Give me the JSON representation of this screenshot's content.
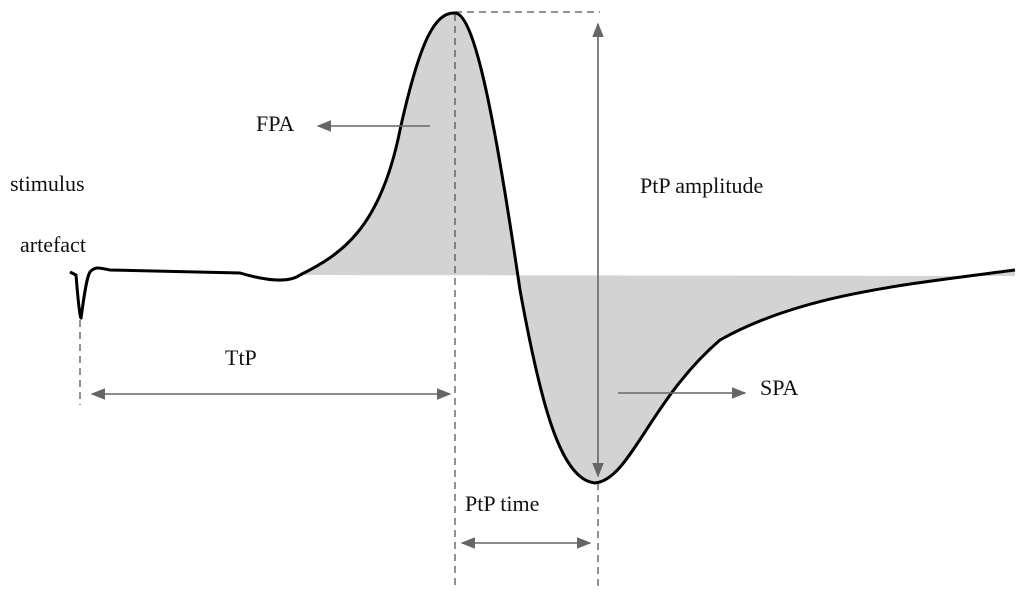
{
  "labels": {
    "stimulus": "stimulus",
    "artefact": "artefact",
    "fpa": "FPA",
    "ttp": "TtP",
    "ptp_amplitude": "PtP amplitude",
    "spa": "SPA",
    "ptp_time": "PtP time"
  }
}
